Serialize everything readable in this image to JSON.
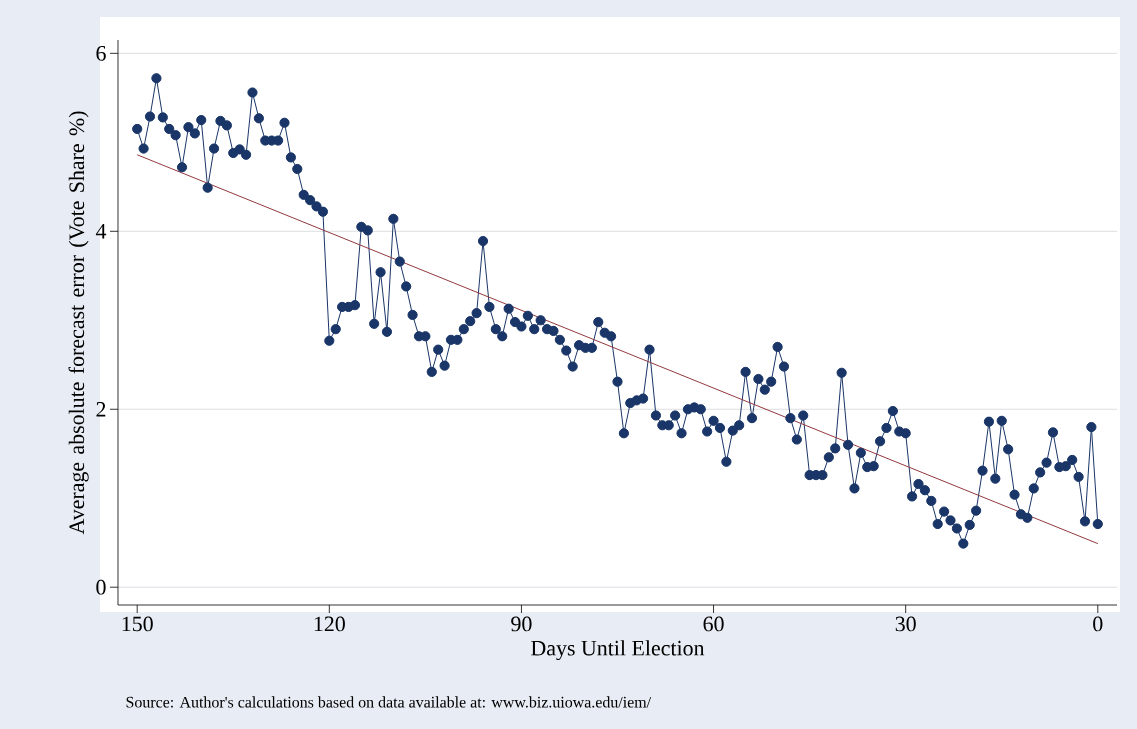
{
  "chart_data": {
    "type": "line",
    "xlabel": "Days Until Election",
    "ylabel": "Average absolute forecast error (Vote Share %)",
    "annotations": [
      "Source: Author's calculations based on data available at: www.biz.uiowa.edu/iem/"
    ],
    "x": [
      150,
      149,
      148,
      147,
      146,
      145,
      144,
      143,
      142,
      141,
      140,
      139,
      138,
      137,
      136,
      135,
      134,
      133,
      132,
      131,
      130,
      129,
      128,
      127,
      126,
      125,
      124,
      123,
      122,
      121,
      120,
      119,
      118,
      117,
      116,
      115,
      114,
      113,
      112,
      111,
      110,
      109,
      108,
      107,
      106,
      105,
      104,
      103,
      102,
      101,
      100,
      99,
      98,
      97,
      96,
      95,
      94,
      93,
      92,
      91,
      90,
      89,
      88,
      87,
      86,
      85,
      84,
      83,
      82,
      81,
      80,
      79,
      78,
      77,
      76,
      75,
      74,
      73,
      72,
      71,
      70,
      69,
      68,
      67,
      66,
      65,
      64,
      63,
      62,
      61,
      60,
      59,
      58,
      57,
      56,
      55,
      54,
      53,
      52,
      51,
      50,
      49,
      48,
      47,
      46,
      45,
      44,
      43,
      42,
      41,
      40,
      39,
      38,
      37,
      36,
      35,
      34,
      33,
      32,
      31,
      30,
      29,
      28,
      27,
      26,
      25,
      24,
      23,
      22,
      21,
      20,
      19,
      18,
      17,
      16,
      15,
      14,
      13,
      12,
      11,
      10,
      9,
      8,
      7,
      6,
      5,
      4,
      3,
      2,
      1,
      0
    ],
    "series": [
      {
        "color": "#1a3668",
        "marker": "circle",
        "values": [
          5.15,
          4.93,
          5.29,
          5.72,
          5.28,
          5.15,
          5.08,
          4.72,
          5.17,
          5.1,
          5.25,
          4.49,
          4.93,
          5.24,
          5.19,
          4.88,
          4.92,
          4.86,
          5.56,
          5.27,
          5.02,
          5.02,
          5.02,
          5.22,
          4.83,
          4.7,
          4.41,
          4.35,
          4.28,
          4.22,
          2.77,
          2.9,
          3.15,
          3.15,
          3.17,
          4.05,
          4.01,
          2.96,
          3.54,
          2.87,
          4.14,
          3.66,
          3.38,
          3.06,
          2.82,
          2.82,
          2.42,
          2.67,
          2.49,
          2.78,
          2.78,
          2.9,
          2.99,
          3.08,
          3.89,
          3.15,
          2.9,
          2.82,
          3.13,
          2.98,
          2.93,
          3.05,
          2.9,
          3.0,
          2.9,
          2.88,
          2.78,
          2.66,
          2.48,
          2.72,
          2.69,
          2.69,
          2.98,
          2.86,
          2.82,
          2.31,
          1.73,
          2.07,
          2.1,
          2.12,
          2.67,
          1.93,
          1.82,
          1.82,
          1.93,
          1.73,
          2.0,
          2.02,
          2.0,
          1.75,
          1.87,
          1.79,
          1.41,
          1.76,
          1.82,
          2.42,
          1.9,
          2.34,
          2.22,
          2.31,
          2.7,
          2.48,
          1.9,
          1.66,
          1.93,
          1.26,
          1.26,
          1.26,
          1.46,
          1.56,
          2.41,
          1.6,
          1.11,
          1.51,
          1.35,
          1.36,
          1.64,
          1.79,
          1.98,
          1.75,
          1.73,
          1.02,
          1.16,
          1.09,
          0.97,
          0.71,
          0.85,
          0.75,
          0.66,
          0.49,
          0.7,
          0.86,
          1.31,
          1.86,
          1.22,
          1.87,
          1.55,
          1.04,
          0.82,
          0.78,
          1.11,
          1.29,
          1.4,
          1.74,
          1.35,
          1.36,
          1.43,
          1.24,
          0.74,
          1.8,
          0.71
        ]
      },
      {
        "type": "line",
        "color": "#93393f",
        "marker": "none",
        "x": [
          150,
          0
        ],
        "values": [
          4.86,
          0.49
        ]
      }
    ],
    "xlim": [
      153,
      -3
    ],
    "xticks": [
      150,
      120,
      90,
      60,
      30,
      0
    ],
    "ylim": [
      -0.2,
      6.15
    ],
    "yticks": [
      0,
      2,
      4,
      6
    ],
    "grid": "y"
  }
}
